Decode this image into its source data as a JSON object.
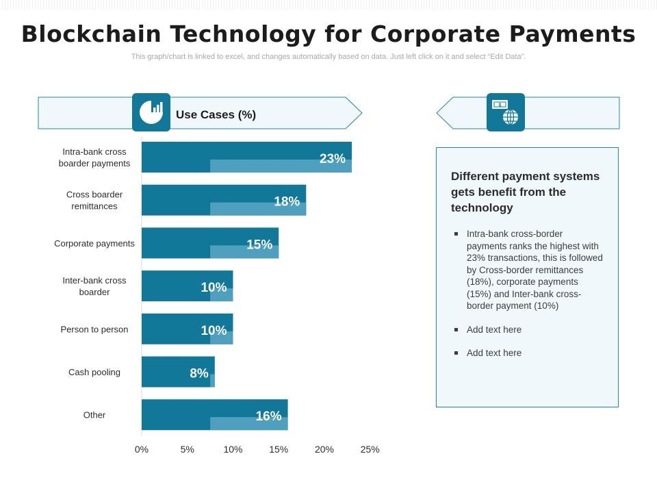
{
  "page": {
    "title": "Blockchain Technology for Corporate Payments",
    "subtitle": "This graph/chart is linked to excel, and changes automatically based on data. Just left click on it and select “Edit Data”."
  },
  "legend": {
    "label": "Use Cases (%)",
    "icon": "pie-chart-icon"
  },
  "side_icon": "money-globe-icon",
  "card": {
    "heading": "Different payment systems gets benefit from the technology",
    "bullets": [
      "Intra-bank cross-border payments ranks the highest with 23% transactions, this is followed by Cross-border remittances (18%), corporate payments (15%) and Inter-bank cross-border payment (10%)",
      "Add text here",
      "Add text here"
    ]
  },
  "colors": {
    "bar": "#12789a",
    "bar_inner": "#4f9fbe",
    "banner_border": "#1f86ad",
    "banner_fill": "#f0f8fc"
  },
  "chart_data": {
    "type": "bar",
    "orientation": "horizontal",
    "categories": [
      "Intra-bank cross boarder payments",
      "Cross boarder remittances",
      "Corporate payments",
      "Inter-bank cross boarder",
      "Person to person",
      "Cash pooling",
      "Other"
    ],
    "values": [
      23,
      18,
      15,
      10,
      10,
      8,
      16
    ],
    "data_labels": [
      "23%",
      "18%",
      "15%",
      "10%",
      "10%",
      "8%",
      "16%"
    ],
    "xticks": [
      "0%",
      "5%",
      "10%",
      "15%",
      "20%",
      "25%"
    ],
    "xlim": [
      0,
      25
    ],
    "grid": false
  }
}
